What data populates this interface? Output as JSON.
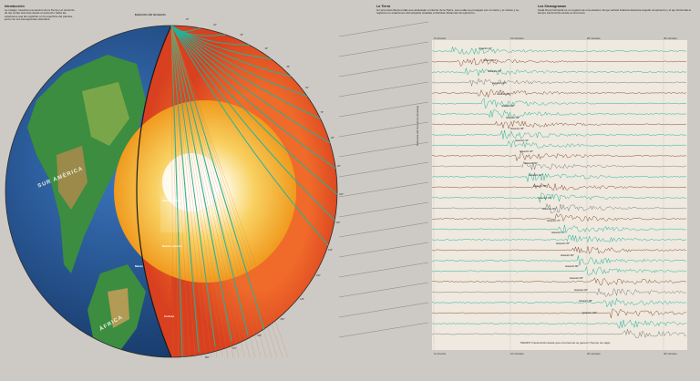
{
  "intro": {
    "heading": "Introducción",
    "body": "La imagen muestra una sección de la Tierra y el recorrido de las ondas sísmicas desde el epicentro hasta las estaciones que las registran en la superficie del planeta, junto con los sismogramas obtenidos."
  },
  "tierra": {
    "heading": "La Tierra",
    "body": "Un terremoto libera ondas que atraviesan el interior de la Tierra. Las ondas se propagan por el manto y el núcleo y se registran en estaciones sismológicas situadas a distintas distancias del epicentro."
  },
  "sismogramas": {
    "heading": "Los Sismogramas",
    "body": "Cada línea horizontal es un registro de una estación. El eje vertical indica la distancia angular al epicentro y el eje horizontal el tiempo transcurrido desde el terremoto."
  },
  "globe": {
    "epicenter": "Epicentro del terremoto",
    "south_america": "SUR AMÉRICA",
    "africa": "ÁFRICA",
    "core_inner": "Núcleo interno",
    "core_outer": "Núcleo externo",
    "mantle": "Manto",
    "crust": "Corteza",
    "distances": [
      "10°",
      "20°",
      "30°",
      "40°",
      "50°",
      "60°",
      "70°",
      "80°",
      "90°",
      "100°",
      "110°",
      "120°",
      "130°",
      "140°",
      "150°",
      "160°",
      "170°",
      "180°"
    ]
  },
  "seismograms": {
    "time_ticks": [
      "0 minutos",
      "10 minutos",
      "20 minutos",
      "30 minutos"
    ],
    "xlabel": "TIEMPO Transcurrido desde que el terremoto se generó (Tiempo de viaje)",
    "ylabel": "Distancia del Terremoto (Grados)",
    "stations": [
      "Estación 10°",
      "Estación 14°",
      "Estación 18°",
      "Estación 22°",
      "Estación 26°",
      "Estación 30°",
      "Estación 34°",
      "Estación 38°",
      "Estación 42°",
      "Estación 46°",
      "Estación 50°",
      "Estación 54°",
      "Estación 58°",
      "Estación 62°",
      "Estación 66°",
      "Estación 70°",
      "Estación 74°",
      "Estación 78°",
      "Estación 82°",
      "Estación 86°",
      "Estación 90°",
      "Estación 94°",
      "Estación 98°",
      "Estación 102°"
    ]
  },
  "colors": {
    "teal": "#1fb59a",
    "brown": "#8a4d2e",
    "mantle": "#e4502a",
    "outer_core": "#f09a1e",
    "inner_core": "#fbe7a6",
    "ocean": "#1e4d8c",
    "land": "#3a8a3c"
  }
}
